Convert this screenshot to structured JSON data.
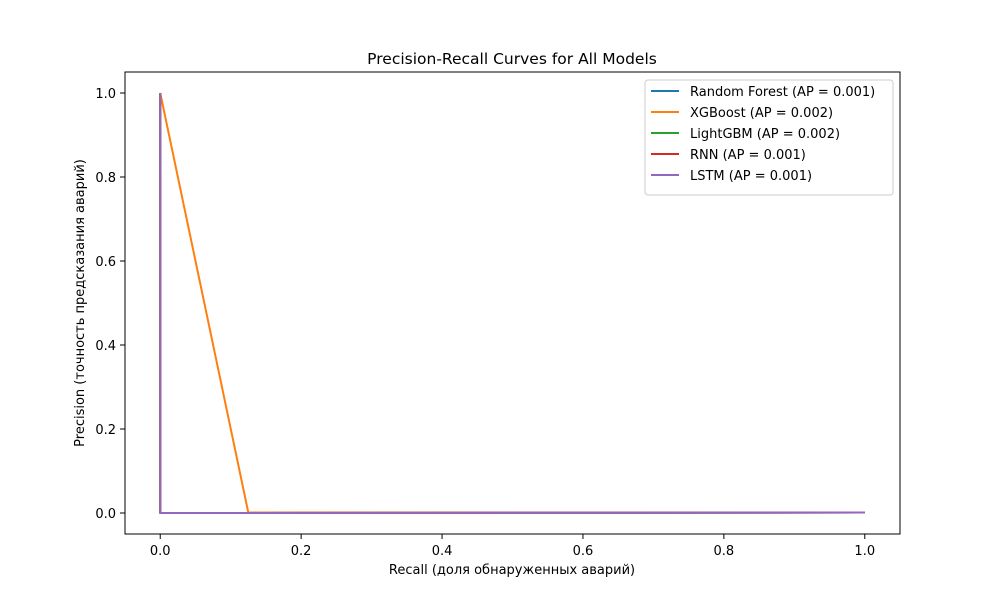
{
  "chart_data": {
    "type": "line",
    "title": "Precision-Recall Curves for All Models",
    "xlabel": "Recall (доля обнаруженных аварий)",
    "ylabel": "Precision (точность предсказания аварий)",
    "xlim": [
      -0.05,
      1.05
    ],
    "ylim": [
      -0.05,
      1.05
    ],
    "xticks": [
      0.0,
      0.2,
      0.4,
      0.6,
      0.8,
      1.0
    ],
    "yticks": [
      0.0,
      0.2,
      0.4,
      0.6,
      0.8,
      1.0
    ],
    "xtick_labels": [
      "0.0",
      "0.2",
      "0.4",
      "0.6",
      "0.8",
      "1.0"
    ],
    "ytick_labels": [
      "0.0",
      "0.2",
      "0.4",
      "0.6",
      "0.8",
      "1.0"
    ],
    "grid": false,
    "legend_position": "top-right",
    "series": [
      {
        "name": "Random Forest (AP = 0.001)",
        "color": "#1f77b4",
        "x": [
          0.0,
          0.0,
          0.0,
          1.0
        ],
        "y": [
          1.0,
          1.0,
          0.0,
          0.0011
        ]
      },
      {
        "name": "XGBoost (AP = 0.002)",
        "color": "#ff7f0e",
        "x": [
          0.0,
          0.125,
          1.0
        ],
        "y": [
          1.0,
          0.0012,
          0.0011
        ]
      },
      {
        "name": "LightGBM (AP = 0.002)",
        "color": "#2ca02c",
        "x": [
          0.0,
          0.0,
          0.0,
          1.0
        ],
        "y": [
          1.0,
          1.0,
          0.0,
          0.0011
        ]
      },
      {
        "name": "RNN (AP = 0.001)",
        "color": "#d62728",
        "x": [
          0.0,
          0.0,
          0.0,
          1.0
        ],
        "y": [
          1.0,
          1.0,
          0.0,
          0.0011
        ]
      },
      {
        "name": "LSTM (AP = 0.001)",
        "color": "#9467bd",
        "x": [
          0.0,
          0.0,
          0.0,
          1.0
        ],
        "y": [
          1.0,
          1.0,
          0.0,
          0.0011
        ]
      }
    ]
  }
}
